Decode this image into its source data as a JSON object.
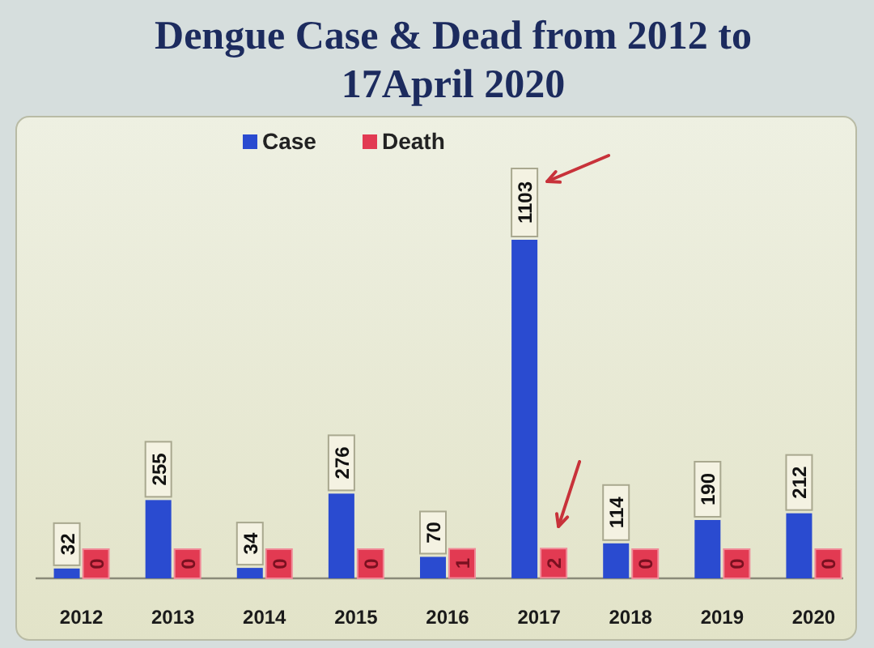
{
  "chart_data": {
    "type": "bar",
    "title": "Dengue Case & Dead from 2012 to 17April 2020",
    "categories": [
      "2012",
      "2013",
      "2014",
      "2015",
      "2016",
      "2017",
      "2018",
      "2019",
      "2020"
    ],
    "series": [
      {
        "name": "Case",
        "color": "#2a4bd0",
        "values": [
          32,
          255,
          34,
          276,
          70,
          1103,
          114,
          190,
          212
        ]
      },
      {
        "name": "Death",
        "color": "#e23a52",
        "values": [
          0,
          0,
          0,
          0,
          1,
          2,
          0,
          0,
          0
        ]
      }
    ],
    "data_labels": true,
    "legend": "top"
  }
}
